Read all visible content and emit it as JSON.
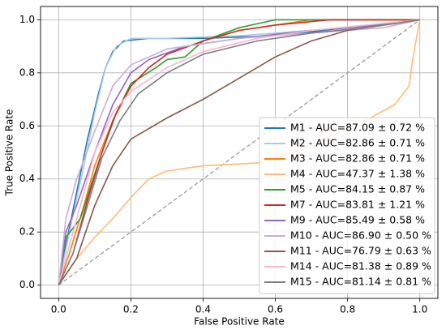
{
  "chart_data": {
    "type": "line",
    "x_label": "False Positive Rate",
    "y_label": "True Positive Rate",
    "xlim": [
      -0.05,
      1.05
    ],
    "ylim": [
      -0.05,
      1.05
    ],
    "xticks": [
      {
        "value": 0,
        "label": "0.0"
      },
      {
        "value": 0.2,
        "label": "0.2"
      },
      {
        "value": 0.4,
        "label": "0.4"
      },
      {
        "value": 0.6,
        "label": "0.6"
      },
      {
        "value": 0.8,
        "label": "0.8"
      },
      {
        "value": 1,
        "label": "1.0"
      }
    ],
    "yticks": [
      {
        "value": 0,
        "label": "0.0"
      },
      {
        "value": 0.2,
        "label": "0.2"
      },
      {
        "value": 0.4,
        "label": "0.4"
      },
      {
        "value": 0.6,
        "label": "0.6"
      },
      {
        "value": 0.8,
        "label": "0.8"
      },
      {
        "value": 1,
        "label": "1.0"
      }
    ],
    "grid": true,
    "legend": "lower right",
    "series": [
      {
        "name": "M1 - AUC=87.09 ± 0.72 %",
        "color": "#1f77b4",
        "x": [
          0,
          0.02,
          0.05,
          0.08,
          0.11,
          0.13,
          0.15,
          0.18,
          0.25,
          0.4,
          0.6,
          0.8,
          1
        ],
        "values": [
          0,
          0.15,
          0.35,
          0.55,
          0.72,
          0.82,
          0.88,
          0.92,
          0.93,
          0.93,
          0.94,
          0.97,
          1
        ]
      },
      {
        "name": "M2 - AUC=82.86 ± 0.71 %",
        "color": "#aec7e8",
        "x": [
          0,
          0.03,
          0.07,
          0.1,
          0.13,
          0.16,
          0.2,
          0.3,
          0.5,
          0.7,
          0.9,
          1
        ],
        "values": [
          0,
          0.2,
          0.45,
          0.65,
          0.82,
          0.9,
          0.93,
          0.93,
          0.94,
          0.96,
          0.98,
          1
        ]
      },
      {
        "name": "M3 - AUC=82.86 ± 0.71 %",
        "color": "#ff7f0e",
        "x": [
          0,
          0.03,
          0.07,
          0.1,
          0.15,
          0.2,
          0.25,
          0.3,
          0.4,
          0.5,
          0.6,
          0.7,
          1
        ],
        "values": [
          0,
          0.12,
          0.3,
          0.45,
          0.62,
          0.75,
          0.82,
          0.87,
          0.92,
          0.96,
          0.98,
          1,
          1
        ]
      },
      {
        "name": "M4 - AUC=47.37 ± 1.38 %",
        "color": "#ffbb78",
        "x": [
          0,
          0.05,
          0.1,
          0.15,
          0.2,
          0.25,
          0.3,
          0.4,
          0.55,
          0.65,
          0.75,
          0.85,
          0.93,
          0.97,
          0.98,
          1
        ],
        "values": [
          0,
          0.1,
          0.18,
          0.25,
          0.33,
          0.4,
          0.43,
          0.45,
          0.46,
          0.5,
          0.56,
          0.62,
          0.68,
          0.75,
          0.85,
          1
        ]
      },
      {
        "name": "M5 - AUC=84.15 ± 0.87 %",
        "color": "#2ca02c",
        "x": [
          0,
          0.02,
          0.06,
          0.1,
          0.15,
          0.2,
          0.27,
          0.3,
          0.35,
          0.4,
          0.5,
          0.6,
          1
        ],
        "values": [
          0,
          0.18,
          0.25,
          0.42,
          0.62,
          0.76,
          0.82,
          0.85,
          0.86,
          0.92,
          0.97,
          1,
          1
        ]
      },
      {
        "name": "M7 - AUC=83.81 ± 1.21 %",
        "color": "#d62728",
        "x": [
          0,
          0.04,
          0.08,
          0.12,
          0.16,
          0.2,
          0.25,
          0.3,
          0.4,
          0.5,
          0.6,
          0.75,
          1
        ],
        "values": [
          0,
          0.12,
          0.32,
          0.5,
          0.65,
          0.75,
          0.82,
          0.87,
          0.92,
          0.96,
          0.98,
          1,
          1
        ]
      },
      {
        "name": "M9 - AUC=85.49 ± 0.58 %",
        "color": "#9467bd",
        "x": [
          0,
          0.02,
          0.05,
          0.1,
          0.15,
          0.2,
          0.25,
          0.35,
          0.5,
          0.7,
          0.9,
          1
        ],
        "values": [
          0,
          0.2,
          0.3,
          0.5,
          0.68,
          0.8,
          0.85,
          0.9,
          0.93,
          0.96,
          0.98,
          1
        ]
      },
      {
        "name": "M10 - AUC=86.90 ± 0.50 %",
        "color": "#c5b0d5",
        "x": [
          0,
          0.02,
          0.05,
          0.1,
          0.15,
          0.2,
          0.3,
          0.5,
          0.7,
          0.9,
          1
        ],
        "values": [
          0,
          0.25,
          0.4,
          0.58,
          0.75,
          0.83,
          0.89,
          0.93,
          0.95,
          0.97,
          1
        ]
      },
      {
        "name": "M11 - AUC=76.79 ± 0.63 %",
        "color": "#8c564b",
        "x": [
          0,
          0.05,
          0.1,
          0.15,
          0.2,
          0.3,
          0.4,
          0.5,
          0.6,
          0.7,
          0.8,
          0.9,
          1
        ],
        "values": [
          0,
          0.1,
          0.3,
          0.45,
          0.55,
          0.63,
          0.7,
          0.78,
          0.86,
          0.92,
          0.96,
          0.98,
          1
        ]
      },
      {
        "name": "M14 - AUC=81.38 ± 0.89 %",
        "color": "#f7b6d2",
        "x": [
          0,
          0.03,
          0.07,
          0.1,
          0.15,
          0.2,
          0.3,
          0.4,
          0.55,
          0.7,
          0.85,
          1
        ],
        "values": [
          0,
          0.15,
          0.35,
          0.5,
          0.65,
          0.73,
          0.82,
          0.88,
          0.93,
          0.96,
          0.98,
          1
        ]
      },
      {
        "name": "M15 - AUC=81.14 ± 0.81 %",
        "color": "#7f7f7f",
        "x": [
          0,
          0.04,
          0.08,
          0.12,
          0.17,
          0.22,
          0.3,
          0.4,
          0.55,
          0.7,
          0.85,
          1
        ],
        "values": [
          0,
          0.12,
          0.3,
          0.48,
          0.62,
          0.72,
          0.8,
          0.87,
          0.92,
          0.95,
          0.97,
          1
        ]
      }
    ]
  }
}
